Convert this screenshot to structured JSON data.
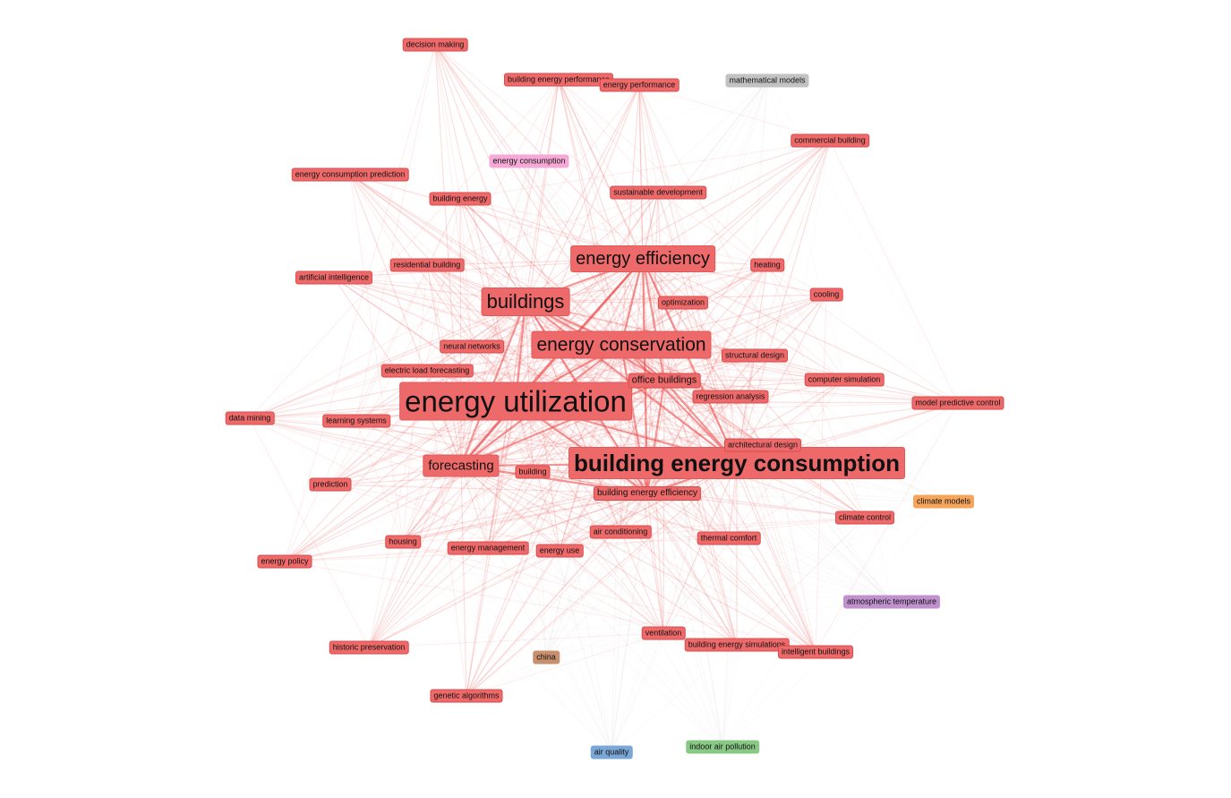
{
  "colors": {
    "red": "#ee6a6a",
    "pink": "#f6a9d6",
    "gray": "#c2c2c2",
    "orange": "#f5a65b",
    "purple": "#c191cf",
    "brown": "#c8906e",
    "blue": "#7ba7d6",
    "green": "#88c985",
    "edge_red": "#ee4b4b",
    "edge_gray": "#cccccc"
  },
  "nodes": [
    {
      "id": "bec",
      "label": "building energy consumption",
      "cluster": "red",
      "weight": 1.0
    },
    {
      "id": "eu",
      "label": "energy utilization",
      "cluster": "red",
      "weight": 0.95
    },
    {
      "id": "bld",
      "label": "buildings",
      "cluster": "red",
      "weight": 0.62
    },
    {
      "id": "ec",
      "label": "energy conservation",
      "cluster": "red",
      "weight": 0.58
    },
    {
      "id": "ee",
      "label": "energy efficiency",
      "cluster": "red",
      "weight": 0.58
    },
    {
      "id": "fc",
      "label": "forecasting",
      "cluster": "red",
      "weight": 0.38
    },
    {
      "id": "ob",
      "label": "office buildings",
      "cluster": "red",
      "weight": 0.24
    },
    {
      "id": "dm",
      "label": "decision making",
      "cluster": "red",
      "weight": 0.1
    },
    {
      "id": "bep",
      "label": "building energy performance",
      "cluster": "red",
      "weight": 0.1
    },
    {
      "id": "ep",
      "label": "energy performance",
      "cluster": "red",
      "weight": 0.1
    },
    {
      "id": "mm",
      "label": "mathematical models",
      "cluster": "gray",
      "weight": 0.1
    },
    {
      "id": "cb",
      "label": "commercial building",
      "cluster": "red",
      "weight": 0.1
    },
    {
      "id": "ecp",
      "label": "energy consumption prediction",
      "cluster": "red",
      "weight": 0.1
    },
    {
      "id": "ecn",
      "label": "energy consumption",
      "cluster": "pink",
      "weight": 0.1
    },
    {
      "id": "be",
      "label": "building energy",
      "cluster": "red",
      "weight": 0.1
    },
    {
      "id": "sd",
      "label": "sustainable development",
      "cluster": "red",
      "weight": 0.1
    },
    {
      "id": "rb",
      "label": "residential building",
      "cluster": "red",
      "weight": 0.1
    },
    {
      "id": "ht",
      "label": "heating",
      "cluster": "red",
      "weight": 0.1
    },
    {
      "id": "ai",
      "label": "artificial intelligence",
      "cluster": "red",
      "weight": 0.1
    },
    {
      "id": "co",
      "label": "cooling",
      "cluster": "red",
      "weight": 0.1
    },
    {
      "id": "op",
      "label": "optimization",
      "cluster": "red",
      "weight": 0.1
    },
    {
      "id": "nn",
      "label": "neural networks",
      "cluster": "red",
      "weight": 0.1
    },
    {
      "id": "sdn",
      "label": "structural design",
      "cluster": "red",
      "weight": 0.1
    },
    {
      "id": "elf",
      "label": "electric load forecasting",
      "cluster": "red",
      "weight": 0.1
    },
    {
      "id": "cs",
      "label": "computer simulation",
      "cluster": "red",
      "weight": 0.1
    },
    {
      "id": "ra",
      "label": "regression analysis",
      "cluster": "red",
      "weight": 0.1
    },
    {
      "id": "mpc",
      "label": "model predictive control",
      "cluster": "red",
      "weight": 0.1
    },
    {
      "id": "dmi",
      "label": "data mining",
      "cluster": "red",
      "weight": 0.1
    },
    {
      "id": "ls",
      "label": "learning systems",
      "cluster": "red",
      "weight": 0.1
    },
    {
      "id": "ad",
      "label": "architectural design",
      "cluster": "red",
      "weight": 0.1
    },
    {
      "id": "bg",
      "label": "building",
      "cluster": "red",
      "weight": 0.1
    },
    {
      "id": "pr",
      "label": "prediction",
      "cluster": "red",
      "weight": 0.1
    },
    {
      "id": "bee",
      "label": "building energy efficiency",
      "cluster": "red",
      "weight": 0.13
    },
    {
      "id": "cm",
      "label": "climate models",
      "cluster": "orange",
      "weight": 0.1
    },
    {
      "id": "cc",
      "label": "climate control",
      "cluster": "red",
      "weight": 0.1
    },
    {
      "id": "ac",
      "label": "air conditioning",
      "cluster": "red",
      "weight": 0.1
    },
    {
      "id": "hs",
      "label": "housing",
      "cluster": "red",
      "weight": 0.1
    },
    {
      "id": "em",
      "label": "energy management",
      "cluster": "red",
      "weight": 0.1
    },
    {
      "id": "eus",
      "label": "energy use",
      "cluster": "red",
      "weight": 0.1
    },
    {
      "id": "tc",
      "label": "thermal comfort",
      "cluster": "red",
      "weight": 0.1
    },
    {
      "id": "epo",
      "label": "energy policy",
      "cluster": "red",
      "weight": 0.1
    },
    {
      "id": "at",
      "label": "atmospheric temperature",
      "cluster": "purple",
      "weight": 0.1
    },
    {
      "id": "ve",
      "label": "ventilation",
      "cluster": "red",
      "weight": 0.1
    },
    {
      "id": "bes",
      "label": "building energy simulations",
      "cluster": "red",
      "weight": 0.1
    },
    {
      "id": "ib",
      "label": "intelligent buildings",
      "cluster": "red",
      "weight": 0.1
    },
    {
      "id": "hp",
      "label": "historic preservation",
      "cluster": "red",
      "weight": 0.1
    },
    {
      "id": "ch",
      "label": "china",
      "cluster": "brown",
      "weight": 0.1
    },
    {
      "id": "ga",
      "label": "genetic algorithms",
      "cluster": "red",
      "weight": 0.1
    },
    {
      "id": "aq",
      "label": "air quality",
      "cluster": "blue",
      "weight": 0.1
    },
    {
      "id": "iap",
      "label": "indoor air pollution",
      "cluster": "green",
      "weight": 0.1
    }
  ]
}
